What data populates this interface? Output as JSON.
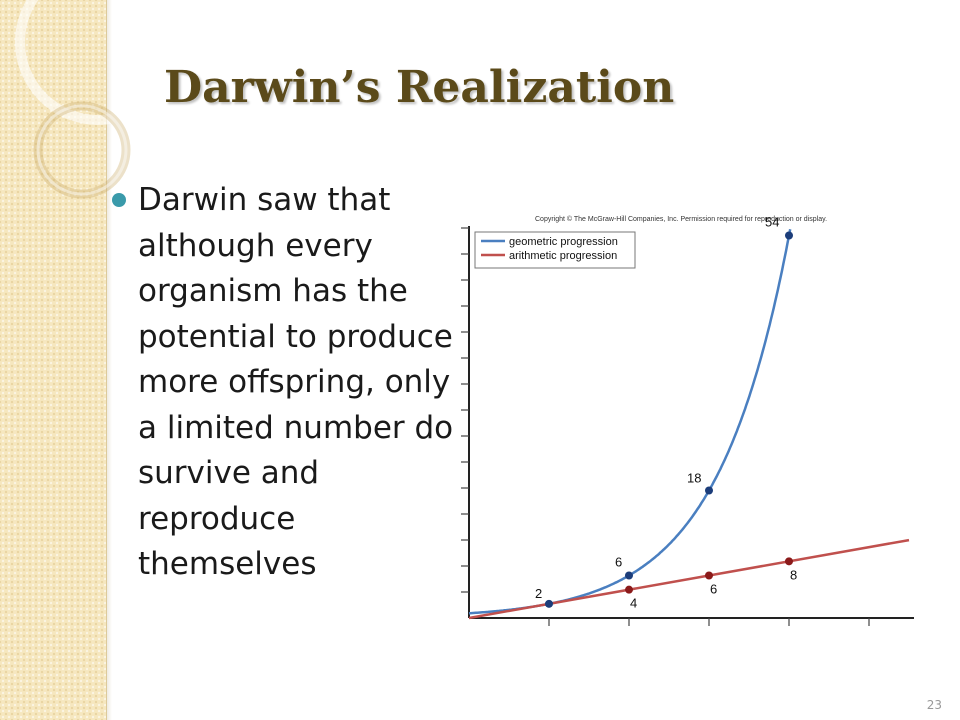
{
  "slide": {
    "title": "Darwin’s Realization",
    "bullet": "Darwin saw that although every organism has the potential to produce more offspring, only a limited number do survive and reproduce themselves",
    "page_number": "23"
  },
  "colors": {
    "sidebar": "#f6e7bf",
    "title": "#5b4a1a",
    "bullet": "#3a9aaa",
    "geometric": "#4a7fc0",
    "arithmetic": "#c0504d",
    "geometric_point": "#1c3d7a",
    "arithmetic_point": "#8b1a1a"
  },
  "chart_data": {
    "type": "line",
    "copyright": "Copyright © The McGraw-Hill Companies, Inc. Permission required for reproduction or display.",
    "legend_position": "top-left",
    "series": [
      {
        "name": "geometric progression",
        "color": "#4a7fc0",
        "points": [
          {
            "x": 1,
            "y": 2,
            "label": "2"
          },
          {
            "x": 2,
            "y": 6,
            "label": "6"
          },
          {
            "x": 3,
            "y": 18,
            "label": "18"
          },
          {
            "x": 4,
            "y": 54,
            "label": "54"
          }
        ]
      },
      {
        "name": "arithmetic progression",
        "color": "#c0504d",
        "points": [
          {
            "x": 2,
            "y": 4,
            "label": "4"
          },
          {
            "x": 3,
            "y": 6,
            "label": "6"
          },
          {
            "x": 4,
            "y": 8,
            "label": "8"
          }
        ]
      }
    ],
    "xlim": [
      0,
      5.5
    ],
    "ylim": [
      0,
      60
    ],
    "grid": false
  }
}
